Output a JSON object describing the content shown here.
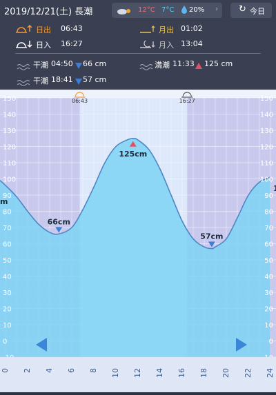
{
  "header": {
    "date": "2019/12/21(土) 長潮",
    "weather": {
      "icon": "partly-cloudy-icon",
      "temp_high": "12°C",
      "temp_low": "7°C",
      "rain_chance": "20%"
    },
    "today_label": "今日",
    "sunrise": {
      "label": "日出",
      "time": "06:43"
    },
    "sunset": {
      "label": "日入",
      "time": "16:27"
    },
    "moonrise": {
      "label": "月出",
      "time": "01:02"
    },
    "moonset": {
      "label": "月入",
      "time": "13:04"
    },
    "tides": [
      {
        "type": "low",
        "label": "干潮",
        "time": "04:50",
        "level": "66 cm"
      },
      {
        "type": "low",
        "label": "干潮",
        "time": "18:41",
        "level": "57 cm"
      },
      {
        "type": "high",
        "label": "満潮",
        "time": "11:33",
        "level": "125 cm"
      }
    ]
  },
  "chart_data": {
    "type": "area",
    "x": [
      -0.5,
      0,
      1,
      2,
      3,
      4,
      4.83,
      6,
      7,
      8,
      9,
      10,
      11,
      11.55,
      12,
      13,
      14,
      15,
      16,
      17,
      18,
      18.68,
      19,
      20,
      21,
      22,
      23,
      24
    ],
    "y": [
      99,
      96,
      89,
      80,
      72,
      67,
      66,
      70,
      81,
      95,
      110,
      120,
      124,
      125,
      124,
      118,
      106,
      90,
      74,
      63,
      58,
      57,
      58,
      63,
      76,
      90,
      98,
      101
    ],
    "xlim": [
      -0.5,
      24.5
    ],
    "ylim": [
      -10,
      150
    ],
    "xticks": [
      "0",
      "2",
      "4",
      "6",
      "8",
      "10",
      "12",
      "14",
      "16",
      "18",
      "20",
      "22",
      "24"
    ],
    "yticks": [
      "-10",
      "0",
      "10",
      "20",
      "30",
      "40",
      "50",
      "60",
      "70",
      "80",
      "90",
      "100",
      "110",
      "120",
      "130",
      "140",
      "150"
    ],
    "annotations": [
      {
        "label": "66cm",
        "x": 4.83,
        "y": 66,
        "marker": "down"
      },
      {
        "label": "125cm",
        "x": 11.55,
        "y": 125,
        "marker": "up"
      },
      {
        "label": "57cm",
        "x": 18.68,
        "y": 57,
        "marker": "down"
      }
    ],
    "daylight": {
      "start": 6.72,
      "end": 16.45
    },
    "sunrise_label": "06:43",
    "sunset_label": "16:27",
    "left_edge_label": "m",
    "right_edge_label": "1",
    "colors": {
      "water": "#7fd3f4",
      "line": "#4e86c4",
      "night": "#c9c9ee",
      "day": "#dde8fb",
      "low": "#3a7fd6",
      "high": "#e0506a"
    }
  }
}
